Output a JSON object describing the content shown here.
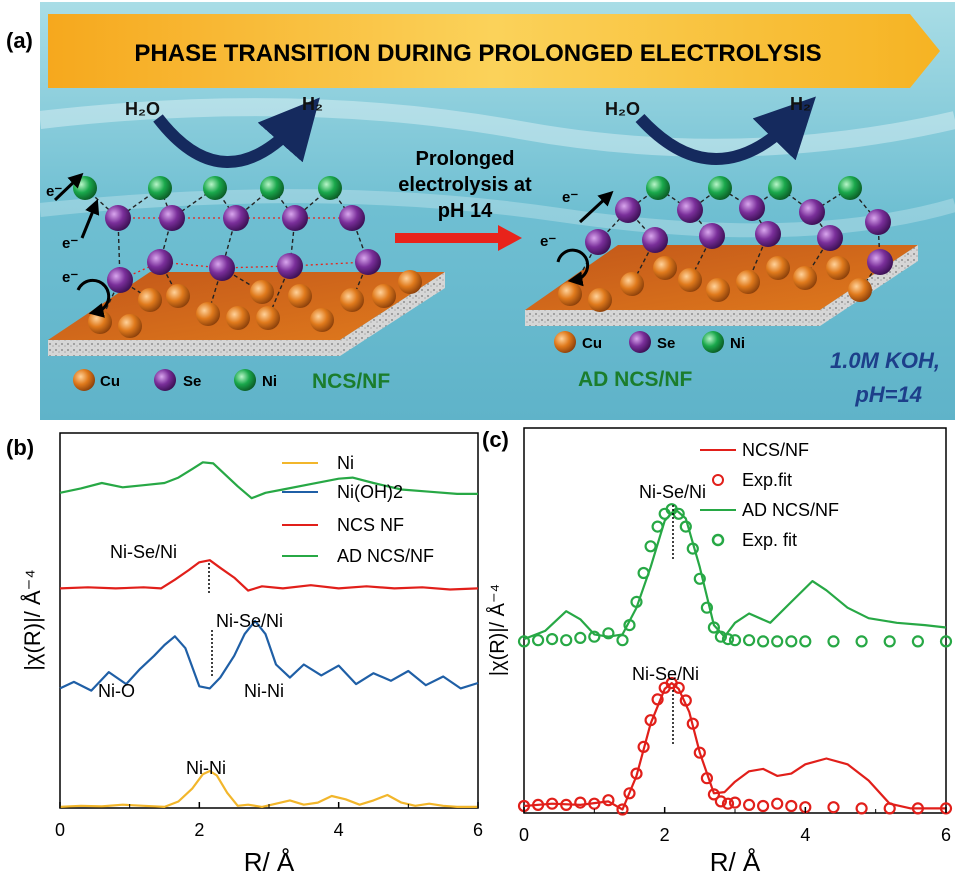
{
  "panel_a": {
    "label": "(a)",
    "banner": "PHASE TRANSITION DURING PROLONGED  ELECTROLYSIS",
    "h2o": "H₂O",
    "h2": "H₂",
    "arrow_label_lines": [
      "Prolonged",
      "electrolysis at",
      "pH 14"
    ],
    "electron": "e⁻",
    "legend": [
      "Cu",
      "Se",
      "Ni"
    ],
    "left_name": "NCS/NF",
    "right_name": "AD NCS/NF",
    "conditions_lines": [
      "1.0M KOH,",
      "pH=14"
    ],
    "colors": {
      "banner": "#f6b323",
      "water": "#7cc4d6",
      "cu": "#e07a1c",
      "se": "#7a2f9a",
      "ni": "#1aa84c",
      "arrow": "#e8231b",
      "h2_arrow": "#152a5e",
      "green_label": "#1b7d2c",
      "blue_label": "#1d3f8a"
    }
  },
  "chart_data": [
    {
      "type": "line",
      "panel_label": "(b)",
      "xlabel": "R/ Å",
      "ylabel": "|χ(R)|/ Å⁻⁴",
      "xlim": [
        0,
        6
      ],
      "xticks": [
        "0",
        "2",
        "4",
        "6"
      ],
      "series": [
        {
          "name": "Ni",
          "color": "#f2b62b",
          "x": [
            0,
            0.3,
            0.6,
            0.9,
            1.2,
            1.5,
            1.7,
            1.9,
            2.05,
            2.15,
            2.25,
            2.4,
            2.55,
            2.7,
            2.9,
            3.1,
            3.3,
            3.5,
            3.7,
            3.9,
            4.1,
            4.3,
            4.5,
            4.7,
            4.9,
            5.1,
            5.3,
            5.5,
            5.7,
            6
          ],
          "y": [
            0.01,
            0.02,
            0.015,
            0.03,
            0.02,
            0.01,
            0.06,
            0.18,
            0.31,
            0.34,
            0.3,
            0.14,
            0.02,
            0.03,
            0.01,
            0.04,
            0.07,
            0.03,
            0.05,
            0.11,
            0.08,
            0.03,
            0.07,
            0.12,
            0.05,
            0.02,
            0.04,
            0.02,
            0.01,
            0.01
          ]
        },
        {
          "name": "Ni(OH)2",
          "color": "#1f5fa6",
          "x": [
            0,
            0.2,
            0.45,
            0.7,
            0.95,
            1.15,
            1.35,
            1.5,
            1.65,
            1.8,
            2.0,
            2.15,
            2.3,
            2.5,
            2.65,
            2.8,
            2.95,
            3.1,
            3.3,
            3.5,
            3.75,
            4.0,
            4.25,
            4.5,
            4.75,
            5.0,
            5.25,
            5.5,
            5.75,
            6
          ],
          "y": [
            1.1,
            1.16,
            1.08,
            1.25,
            1.14,
            1.28,
            1.4,
            1.5,
            1.58,
            1.47,
            1.12,
            1.1,
            1.2,
            1.4,
            1.6,
            1.72,
            1.6,
            1.32,
            1.2,
            1.32,
            1.22,
            1.31,
            1.14,
            1.24,
            1.17,
            1.26,
            1.13,
            1.21,
            1.1,
            1.15
          ]
        },
        {
          "name": "NCS NF",
          "color": "#e11f1a",
          "x": [
            0,
            0.4,
            0.8,
            1.2,
            1.45,
            1.65,
            1.85,
            2.0,
            2.15,
            2.3,
            2.5,
            2.7,
            2.9,
            3.2,
            3.6,
            4.0,
            4.4,
            4.8,
            5.2,
            5.6,
            6
          ],
          "y": [
            2.02,
            2.03,
            2.02,
            2.03,
            2.02,
            2.1,
            2.19,
            2.26,
            2.28,
            2.21,
            2.12,
            2.0,
            2.04,
            2.02,
            2.05,
            2.02,
            2.04,
            2.02,
            2.03,
            2.01,
            2.02
          ]
        },
        {
          "name": "AD NCS/NF",
          "color": "#27a845",
          "x": [
            0,
            0.3,
            0.6,
            0.9,
            1.2,
            1.5,
            1.7,
            1.9,
            2.05,
            2.2,
            2.35,
            2.55,
            2.75,
            2.95,
            3.2,
            3.6,
            4.0,
            4.2,
            4.5,
            4.9,
            5.3,
            5.7,
            6
          ],
          "y": [
            2.9,
            2.94,
            2.99,
            2.95,
            2.97,
            2.99,
            3.04,
            3.12,
            3.18,
            3.17,
            3.08,
            2.96,
            2.85,
            2.9,
            2.93,
            2.98,
            3.03,
            3.04,
            2.99,
            2.93,
            2.91,
            2.89,
            2.89
          ]
        }
      ],
      "annotations": [
        {
          "text": "Ni-Se/Ni",
          "x": 2.2
        },
        {
          "text": "Ni-Se/Ni",
          "x": 2.2
        },
        {
          "text": "Ni-O",
          "x": 1.5
        },
        {
          "text": "Ni-Ni",
          "x": 2.8
        },
        {
          "text": "Ni-Ni",
          "x": 2.15
        }
      ]
    },
    {
      "type": "line",
      "panel_label": "(c)",
      "xlabel": "R/ Å",
      "ylabel": "|χ(R)|/ Å⁻⁴",
      "xlim": [
        0,
        6
      ],
      "xticks": [
        "0",
        "2",
        "4",
        "6"
      ],
      "series": [
        {
          "name": "NCS/NF",
          "color": "#e11f1a",
          "style": "line",
          "x": [
            0,
            0.4,
            0.8,
            1.2,
            1.4,
            1.6,
            1.8,
            2.0,
            2.1,
            2.2,
            2.35,
            2.5,
            2.7,
            2.85,
            3.0,
            3.2,
            3.4,
            3.6,
            3.8,
            4.0,
            4.3,
            4.6,
            4.9,
            5.2,
            5.5,
            5.8,
            6
          ],
          "y": [
            0.04,
            0.06,
            0.05,
            0.08,
            0.01,
            0.3,
            0.75,
            1.05,
            1.1,
            1.05,
            0.85,
            0.5,
            0.15,
            0.16,
            0.25,
            0.34,
            0.36,
            0.3,
            0.32,
            0.4,
            0.45,
            0.4,
            0.26,
            0.06,
            0.02,
            0.02,
            0.02
          ]
        },
        {
          "name": "Exp.fit",
          "color": "#e11f1a",
          "style": "hollow-markers",
          "x": [
            0,
            0.2,
            0.4,
            0.6,
            0.8,
            1.0,
            1.2,
            1.4,
            1.5,
            1.6,
            1.7,
            1.8,
            1.9,
            2.0,
            2.1,
            2.2,
            2.3,
            2.4,
            2.5,
            2.6,
            2.7,
            2.8,
            2.9,
            3.0,
            3.2,
            3.4,
            3.6,
            3.8,
            4.0,
            4.4,
            4.8,
            5.2,
            5.6,
            6
          ],
          "y": [
            0.04,
            0.05,
            0.06,
            0.05,
            0.07,
            0.06,
            0.09,
            0.01,
            0.15,
            0.32,
            0.55,
            0.78,
            0.96,
            1.06,
            1.1,
            1.06,
            0.95,
            0.75,
            0.5,
            0.28,
            0.14,
            0.08,
            0.06,
            0.07,
            0.05,
            0.04,
            0.06,
            0.04,
            0.03,
            0.03,
            0.02,
            0.02,
            0.02,
            0.02
          ]
        },
        {
          "name": "AD NCS/NF",
          "color": "#27a845",
          "style": "line",
          "x": [
            0,
            0.3,
            0.6,
            0.8,
            1.0,
            1.2,
            1.4,
            1.6,
            1.8,
            2.0,
            2.15,
            2.3,
            2.5,
            2.7,
            2.85,
            3.0,
            3.2,
            3.5,
            3.8,
            4.1,
            4.3,
            4.6,
            4.9,
            5.3,
            5.7,
            6
          ],
          "y": [
            1.48,
            1.55,
            1.72,
            1.65,
            1.52,
            1.5,
            1.52,
            1.75,
            2.1,
            2.5,
            2.6,
            2.52,
            2.1,
            1.6,
            1.5,
            1.62,
            1.7,
            1.62,
            1.8,
            1.98,
            1.9,
            1.75,
            1.66,
            1.62,
            1.6,
            1.58
          ]
        },
        {
          "name": "Exp. fit",
          "color": "#27a845",
          "style": "hollow-markers",
          "x": [
            0,
            0.2,
            0.4,
            0.6,
            0.8,
            1.0,
            1.2,
            1.4,
            1.5,
            1.6,
            1.7,
            1.8,
            1.9,
            2.0,
            2.1,
            2.2,
            2.3,
            2.4,
            2.5,
            2.6,
            2.7,
            2.8,
            2.9,
            3.0,
            3.2,
            3.4,
            3.6,
            3.8,
            4.0,
            4.4,
            4.8,
            5.2,
            5.6,
            6
          ],
          "y": [
            1.46,
            1.47,
            1.48,
            1.47,
            1.49,
            1.5,
            1.53,
            1.47,
            1.6,
            1.8,
            2.05,
            2.28,
            2.45,
            2.56,
            2.6,
            2.56,
            2.45,
            2.26,
            2.0,
            1.75,
            1.58,
            1.5,
            1.48,
            1.47,
            1.47,
            1.46,
            1.46,
            1.46,
            1.46,
            1.46,
            1.46,
            1.46,
            1.46,
            1.46
          ]
        }
      ],
      "annotations": [
        {
          "text": "Ni-Se/Ni",
          "x": 2.1
        },
        {
          "text": "Ni-Se/Ni",
          "x": 2.1
        }
      ]
    }
  ]
}
